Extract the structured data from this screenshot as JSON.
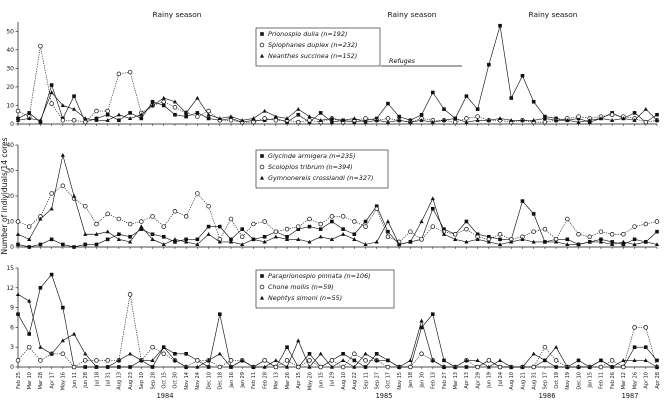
{
  "chart_data": [
    {
      "type": "line",
      "panel": "top",
      "ylim": [
        0,
        55
      ],
      "yticks": [
        0,
        10,
        20,
        30,
        40,
        50
      ],
      "series": [
        {
          "name": "Prionospio dulia (n=192)",
          "marker": "square",
          "dash": "solid",
          "x": [
            0,
            1,
            2,
            3,
            4,
            5,
            6,
            7,
            8,
            9,
            10,
            11,
            12,
            13,
            14,
            15,
            16,
            17,
            18,
            19,
            20,
            21,
            22,
            23,
            24,
            25,
            26,
            27,
            28,
            29,
            30,
            31,
            32,
            33,
            34,
            35,
            36,
            37,
            38,
            39,
            40,
            41,
            42,
            43,
            44,
            45,
            46,
            47,
            48,
            49,
            50,
            51,
            52,
            53,
            54,
            55,
            56,
            57
          ],
          "y": [
            3,
            6,
            1,
            21,
            3,
            15,
            1,
            3,
            5,
            2,
            6,
            3,
            12,
            10,
            5,
            4,
            6,
            3,
            2,
            3,
            1,
            2,
            2,
            3,
            1,
            5,
            1,
            6,
            1,
            2,
            1,
            2,
            3,
            11,
            4,
            2,
            5,
            17,
            8,
            3,
            15,
            8,
            32,
            53,
            14,
            26,
            12,
            4,
            3,
            2,
            3,
            1,
            3,
            6,
            3,
            6,
            1,
            5
          ]
        },
        {
          "name": "Spiophanes duplex (n=232)",
          "marker": "circle",
          "dash": "dotted",
          "x": [
            0,
            1,
            2,
            3,
            4,
            5,
            6,
            7,
            8,
            9,
            10,
            11,
            12,
            13,
            14,
            15,
            16,
            17,
            18,
            19,
            20,
            21,
            22,
            23,
            24,
            25,
            26,
            27,
            28,
            29,
            30,
            31,
            32,
            33,
            34,
            35,
            36,
            37,
            38,
            39,
            40,
            41,
            42,
            43,
            44,
            45,
            46,
            47,
            48,
            49,
            50,
            51,
            52,
            53,
            54,
            55,
            56,
            57
          ],
          "y": [
            7,
            4,
            42,
            11,
            2,
            2,
            1,
            7,
            7,
            27,
            28,
            6,
            10,
            12,
            9,
            6,
            4,
            7,
            2,
            2,
            1,
            1,
            3,
            2,
            2,
            1,
            2,
            1,
            3,
            1,
            2,
            3,
            2,
            3,
            2,
            1,
            3,
            2,
            2,
            1,
            3,
            4,
            2,
            2,
            1,
            2,
            1,
            1,
            2,
            3,
            4,
            3,
            4,
            5,
            4,
            3,
            1,
            2
          ]
        },
        {
          "name": "Neanthes succinea (n=152)",
          "marker": "triangle",
          "dash": "solid",
          "x": [
            0,
            1,
            2,
            3,
            4,
            5,
            6,
            7,
            8,
            9,
            10,
            11,
            12,
            13,
            14,
            15,
            16,
            17,
            18,
            19,
            20,
            21,
            22,
            23,
            24,
            25,
            26,
            27,
            28,
            29,
            30,
            31,
            32,
            33,
            34,
            35,
            36,
            37,
            38,
            39,
            40,
            41,
            42,
            43,
            44,
            45,
            46,
            47,
            48,
            49,
            50,
            51,
            52,
            53,
            54,
            55,
            56,
            57
          ],
          "y": [
            2,
            3,
            2,
            17,
            10,
            8,
            3,
            2,
            2,
            5,
            3,
            5,
            10,
            14,
            12,
            6,
            14,
            5,
            3,
            4,
            2,
            3,
            7,
            4,
            3,
            8,
            4,
            2,
            3,
            2,
            3,
            1,
            2,
            1,
            2,
            1,
            2,
            1,
            2,
            3,
            1,
            2,
            2,
            3,
            2,
            2,
            2,
            3,
            2,
            2,
            1,
            2,
            3,
            2,
            3,
            2,
            8,
            2
          ]
        }
      ]
    },
    {
      "type": "line",
      "panel": "middle",
      "ylim": [
        0,
        40
      ],
      "yticks": [
        0,
        10,
        20,
        30,
        40
      ],
      "series": [
        {
          "name": "Glycinde armigera (n=235)",
          "marker": "square",
          "dash": "solid",
          "x": [
            0,
            1,
            2,
            3,
            4,
            5,
            6,
            7,
            8,
            9,
            10,
            11,
            12,
            13,
            14,
            15,
            16,
            17,
            18,
            19,
            20,
            21,
            22,
            23,
            24,
            25,
            26,
            27,
            28,
            29,
            30,
            31,
            32,
            33,
            34,
            35,
            36,
            37,
            38,
            39,
            40,
            41,
            42,
            43,
            44,
            45,
            46,
            47,
            48,
            49,
            50,
            51,
            52,
            53,
            54,
            55,
            56,
            57
          ],
          "y": [
            1,
            0,
            1,
            3,
            1,
            0,
            1,
            1,
            3,
            5,
            4,
            7,
            5,
            4,
            2,
            3,
            3,
            8,
            8,
            3,
            7,
            3,
            4,
            6,
            4,
            7,
            8,
            7,
            10,
            7,
            5,
            10,
            16,
            6,
            1,
            2,
            3,
            15,
            7,
            5,
            10,
            5,
            4,
            3,
            3,
            18,
            13,
            2,
            3,
            3,
            1,
            2,
            3,
            2,
            1,
            3,
            2,
            6
          ]
        },
        {
          "name": "Scoloplos tribrum (n=394)",
          "marker": "circle",
          "dash": "dotted",
          "x": [
            0,
            1,
            2,
            3,
            4,
            5,
            6,
            7,
            8,
            9,
            10,
            11,
            12,
            13,
            14,
            15,
            16,
            17,
            18,
            19,
            20,
            21,
            22,
            23,
            24,
            25,
            26,
            27,
            28,
            29,
            30,
            31,
            32,
            33,
            34,
            35,
            36,
            37,
            38,
            39,
            40,
            41,
            42,
            43,
            44,
            45,
            46,
            47,
            48,
            49,
            50,
            51,
            52,
            53,
            54,
            55,
            56,
            57
          ],
          "y": [
            10,
            8,
            12,
            21,
            24,
            19,
            16,
            9,
            13,
            11,
            9,
            10,
            12,
            8,
            14,
            12,
            21,
            16,
            3,
            11,
            4,
            9,
            10,
            6,
            7,
            8,
            11,
            9,
            12,
            12,
            10,
            8,
            15,
            4,
            2,
            6,
            3,
            8,
            6,
            5,
            7,
            4,
            3,
            5,
            3,
            4,
            6,
            7,
            3,
            11,
            5,
            4,
            6,
            5,
            5,
            8,
            9,
            10
          ]
        },
        {
          "name": "Gymnonereis crosslandi (n=327)",
          "marker": "triangle",
          "dash": "solid",
          "x": [
            0,
            1,
            2,
            3,
            4,
            5,
            6,
            7,
            8,
            9,
            10,
            11,
            12,
            13,
            14,
            15,
            16,
            17,
            18,
            19,
            20,
            21,
            22,
            23,
            24,
            25,
            26,
            27,
            28,
            29,
            30,
            31,
            32,
            33,
            34,
            35,
            36,
            37,
            38,
            39,
            40,
            41,
            42,
            43,
            44,
            45,
            46,
            47,
            48,
            49,
            50,
            51,
            52,
            53,
            54,
            55,
            56,
            57
          ],
          "y": [
            5,
            3,
            11,
            15,
            36,
            20,
            5,
            5,
            6,
            3,
            2,
            8,
            3,
            1,
            3,
            2,
            1,
            5,
            2,
            2,
            1,
            3,
            2,
            4,
            3,
            3,
            2,
            4,
            3,
            5,
            3,
            1,
            2,
            10,
            1,
            2,
            10,
            19,
            5,
            3,
            2,
            3,
            2,
            1,
            2,
            3,
            2,
            2,
            2,
            1,
            1,
            2,
            2,
            1,
            2,
            1,
            2,
            1
          ]
        }
      ]
    },
    {
      "type": "line",
      "panel": "bottom",
      "ylim": [
        0,
        15
      ],
      "yticks": [
        0,
        3,
        6,
        9,
        12,
        15
      ],
      "series": [
        {
          "name": "Paraprionospio pinnata (n=106)",
          "marker": "square",
          "dash": "solid",
          "x": [
            0,
            1,
            2,
            3,
            4,
            5,
            6,
            7,
            8,
            9,
            10,
            11,
            12,
            13,
            14,
            15,
            16,
            17,
            18,
            19,
            20,
            21,
            22,
            23,
            24,
            25,
            26,
            27,
            28,
            29,
            30,
            31,
            32,
            33,
            34,
            35,
            36,
            37,
            38,
            39,
            40,
            41,
            42,
            43,
            44,
            45,
            46,
            47,
            48,
            49,
            50,
            51,
            52,
            53,
            54,
            55,
            56,
            57
          ],
          "y": [
            8,
            5,
            12,
            14,
            9,
            0,
            0,
            0,
            0,
            0,
            0,
            1,
            0,
            3,
            2,
            2,
            1,
            0,
            8,
            0,
            1,
            0,
            1,
            0,
            3,
            0,
            2,
            0,
            1,
            2,
            1,
            0,
            2,
            1,
            0,
            0,
            6,
            8,
            1,
            0,
            0,
            0,
            1,
            0,
            0,
            0,
            0,
            1,
            0,
            0,
            1,
            0,
            1,
            0,
            0,
            3,
            3,
            1
          ]
        },
        {
          "name": "Chone mollis (n=59)",
          "marker": "circle",
          "dash": "dotted",
          "x": [
            0,
            1,
            2,
            3,
            4,
            5,
            6,
            7,
            8,
            9,
            10,
            11,
            12,
            13,
            14,
            15,
            16,
            17,
            18,
            19,
            20,
            21,
            22,
            23,
            24,
            25,
            26,
            27,
            28,
            29,
            30,
            31,
            32,
            33,
            34,
            35,
            36,
            37,
            38,
            39,
            40,
            41,
            42,
            43,
            44,
            45,
            46,
            47,
            48,
            49,
            50,
            51,
            52,
            53,
            54,
            55,
            56,
            57
          ],
          "y": [
            1,
            3,
            1,
            2,
            2,
            0,
            1,
            1,
            1,
            1,
            11,
            1,
            3,
            2,
            1,
            0,
            1,
            1,
            0,
            1,
            1,
            0,
            1,
            0,
            1,
            0,
            1,
            0,
            1,
            0,
            2,
            1,
            1,
            0,
            0,
            0,
            2,
            1,
            0,
            0,
            1,
            0,
            1,
            0,
            0,
            0,
            0,
            3,
            1,
            0,
            0,
            0,
            0,
            1,
            0,
            6,
            6,
            0
          ]
        },
        {
          "name": "Nephtys simoni (n=55)",
          "marker": "triangle",
          "dash": "solid",
          "x": [
            0,
            1,
            2,
            3,
            4,
            5,
            6,
            7,
            8,
            9,
            10,
            11,
            12,
            13,
            14,
            15,
            16,
            17,
            18,
            19,
            20,
            21,
            22,
            23,
            24,
            25,
            26,
            27,
            28,
            29,
            30,
            31,
            32,
            33,
            34,
            35,
            36,
            37,
            38,
            39,
            40,
            41,
            42,
            43,
            44,
            45,
            46,
            47,
            48,
            49,
            50,
            51,
            52,
            53,
            54,
            55,
            56,
            57
          ],
          "y": [
            11,
            10,
            3,
            2,
            4,
            5,
            2,
            0,
            0,
            1,
            2,
            1,
            1,
            3,
            1,
            0,
            0,
            1,
            2,
            0,
            1,
            0,
            0,
            1,
            0,
            4,
            0,
            2,
            0,
            1,
            0,
            2,
            1,
            1,
            0,
            1,
            7,
            1,
            0,
            0,
            1,
            1,
            0,
            1,
            0,
            0,
            2,
            1,
            3,
            0,
            0,
            0,
            1,
            0,
            1,
            1,
            1,
            0
          ]
        }
      ]
    }
  ],
  "season_labels": [
    "Rainy season",
    "Rainy season",
    "Rainy season"
  ],
  "refuge_label": "Refuges",
  "ylabel": "Number of individuals/14 cores",
  "years": [
    "1984",
    "1985",
    "1986",
    "1987"
  ],
  "x_tick_labels": [
    "Feb 25",
    "Mar 10",
    "Mar 28",
    "Apr 17",
    "May 16",
    "Jun 11",
    "Jun 28",
    "Jul 18",
    "Jul 31",
    "Aug 13",
    "Aug 23",
    "Sep 10",
    "Sep 28",
    "Oct 15",
    "Oct 30",
    "Nov 14",
    "Nov 24",
    "Dec 10",
    "Dec 18",
    "Jan 16",
    "Jan 29",
    "Feb 11",
    "Feb 28",
    "Mar 13",
    "Mar 26",
    "Apr 15",
    "May 20",
    "Jun 15",
    "Jul 29",
    "Aug 10",
    "Aug 22",
    "Sep 11",
    "Sep 27",
    "Oct 17",
    "Nov 15",
    "Jan 18",
    "Jan 30",
    "Feb 13",
    "Feb 27",
    "Mar 13",
    "Apr 13",
    "Apr 29",
    "Jun 19",
    "Jul 24",
    "Aug 10",
    "Aug 21",
    "Aug 31",
    "Sep 17",
    "Oct 19",
    "Nov 19",
    "Dec 10",
    "Jan 15",
    "Feb 11",
    "Feb 26",
    "Mar 12",
    "Mar 26",
    "Apr 10",
    "Apr 28"
  ],
  "colors": {
    "line": "#111111",
    "axis": "#111111",
    "background": "#ffffff"
  }
}
